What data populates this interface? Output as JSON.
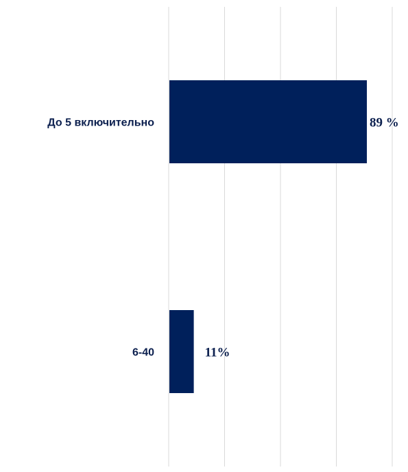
{
  "chart_data": {
    "type": "bar",
    "orientation": "horizontal",
    "categories": [
      "До 5 включительно",
      "6-40"
    ],
    "values": [
      89,
      11
    ],
    "data_labels": [
      "89 %",
      "11%"
    ],
    "unit": "%",
    "xlim": [
      0,
      100
    ],
    "grid": true,
    "bar_color": "#00205b",
    "gridline_color": "#d9d9d9"
  }
}
